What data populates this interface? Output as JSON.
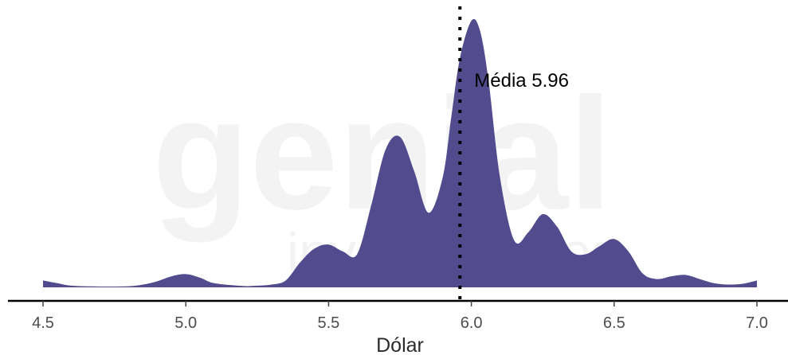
{
  "watermark": {
    "line1": "genial",
    "line2": "investimentos"
  },
  "chart_data": {
    "type": "area",
    "title": "",
    "xlabel": "Dólar",
    "ylabel": "",
    "xlim": [
      4.5,
      7.0
    ],
    "ylim": [
      0,
      1.0
    ],
    "xticks": [
      4.5,
      5.0,
      5.5,
      6.0,
      6.5,
      7.0
    ],
    "xtick_labels": [
      "4.5",
      "5.0",
      "5.5",
      "6.0",
      "6.5",
      "7.0"
    ],
    "fill_color": "#524c8e",
    "grid": false,
    "x": [
      4.5,
      4.55,
      4.6,
      4.7,
      4.8,
      4.85,
      4.9,
      4.95,
      5.0,
      5.05,
      5.1,
      5.2,
      5.25,
      5.3,
      5.35,
      5.4,
      5.45,
      5.5,
      5.55,
      5.6,
      5.65,
      5.7,
      5.75,
      5.8,
      5.85,
      5.9,
      5.93,
      5.96,
      6.0,
      6.03,
      6.06,
      6.1,
      6.15,
      6.2,
      6.25,
      6.3,
      6.35,
      6.4,
      6.45,
      6.5,
      6.55,
      6.6,
      6.65,
      6.7,
      6.75,
      6.8,
      6.85,
      6.9,
      6.95,
      7.0
    ],
    "y": [
      0.025,
      0.015,
      0.006,
      0.003,
      0.004,
      0.01,
      0.022,
      0.04,
      0.048,
      0.035,
      0.015,
      0.005,
      0.006,
      0.01,
      0.025,
      0.09,
      0.14,
      0.155,
      0.13,
      0.12,
      0.3,
      0.5,
      0.545,
      0.42,
      0.27,
      0.4,
      0.62,
      0.83,
      0.965,
      0.93,
      0.75,
      0.4,
      0.17,
      0.2,
      0.265,
      0.22,
      0.13,
      0.12,
      0.15,
      0.175,
      0.13,
      0.05,
      0.03,
      0.04,
      0.045,
      0.03,
      0.015,
      0.01,
      0.013,
      0.025
    ],
    "annotations": [
      {
        "type": "vline",
        "x": 5.96,
        "style": "dotted",
        "label": "Média 5.96"
      }
    ]
  }
}
